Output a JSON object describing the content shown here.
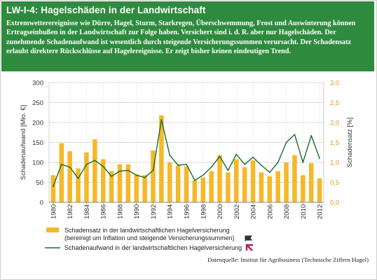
{
  "header": {
    "title": "LW-I-4: Hagelschäden in der Landwirtschaft",
    "description": "Extremwetterereignisse wie Dürre, Hagel, Sturm, Starkregen, Überschwemmung, Frost und Auswinterung können Ertragseinbußen in der Landwirtschaft zur Folge haben. Versichert sind i. d. R. aber nur Hagelschäden. Der zunehmende Schadenaufwand ist wesentlich durch steigende Versicherungssummen verursacht. Der Schadensatz erlaubt direktere Rückschlüsse auf Hagelereignisse. Er zeigt bisher keinen eindeutigen Trend."
  },
  "chart_data": {
    "type": "bar",
    "x": [
      1980,
      1981,
      1982,
      1983,
      1984,
      1985,
      1986,
      1987,
      1988,
      1989,
      1990,
      1991,
      1992,
      1993,
      1994,
      1995,
      1996,
      1997,
      1998,
      1999,
      2000,
      2001,
      2002,
      2003,
      2004,
      2005,
      2006,
      2007,
      2008,
      2009,
      2010,
      2011,
      2012
    ],
    "x_tick_labels": [
      "1980",
      "1982",
      "1984",
      "1986",
      "1988",
      "1990",
      "1992",
      "1994",
      "1996",
      "1998",
      "2000",
      "2002",
      "2004",
      "2006",
      "2008",
      "2010",
      "2012"
    ],
    "y_left_ticks": [
      "0",
      "50",
      "100",
      "150",
      "200",
      "250",
      "300"
    ],
    "y_right_ticks": [
      "0,0",
      "0,5",
      "1,0",
      "1,5",
      "2,0",
      "2,5",
      "3,0"
    ],
    "ylabel_left": "Schadenaufwand [Mio. €]",
    "ylabel_right": "Schadensatz [%]",
    "ylim_left": [
      0,
      300
    ],
    "ylim_right": [
      0,
      3.0
    ],
    "series": [
      {
        "name": "Schadensatz in der landwirtschaftlichen Hagelversicherung (bereinigt um Inflation und steigende Versicherungssummen)",
        "type": "bar",
        "axis": "right",
        "color": "#f5b829",
        "values": [
          0.68,
          1.48,
          1.28,
          0.85,
          1.25,
          1.58,
          1.08,
          0.78,
          0.95,
          0.95,
          0.7,
          0.68,
          1.3,
          2.18,
          1.0,
          0.92,
          0.9,
          0.55,
          0.62,
          0.78,
          1.18,
          0.75,
          1.08,
          0.88,
          1.05,
          0.75,
          0.65,
          0.78,
          1.0,
          1.18,
          0.68,
          0.98,
          0.6
        ]
      },
      {
        "name": "Schadenaufwand in der landwirtschaftlichen Hagelversicherung",
        "type": "line",
        "axis": "left",
        "color": "#1e6b2c",
        "values": [
          40,
          95,
          88,
          60,
          95,
          105,
          90,
          65,
          78,
          80,
          68,
          62,
          80,
          207,
          118,
          93,
          95,
          55,
          68,
          88,
          115,
          80,
          120,
          95,
          113,
          93,
          75,
          100,
          150,
          170,
          100,
          167,
          110
        ]
      }
    ],
    "legend_position": "bottom-left",
    "source": "Datenquelle: Institut für Agribusiness (Technische Ziffern Hagel)"
  }
}
